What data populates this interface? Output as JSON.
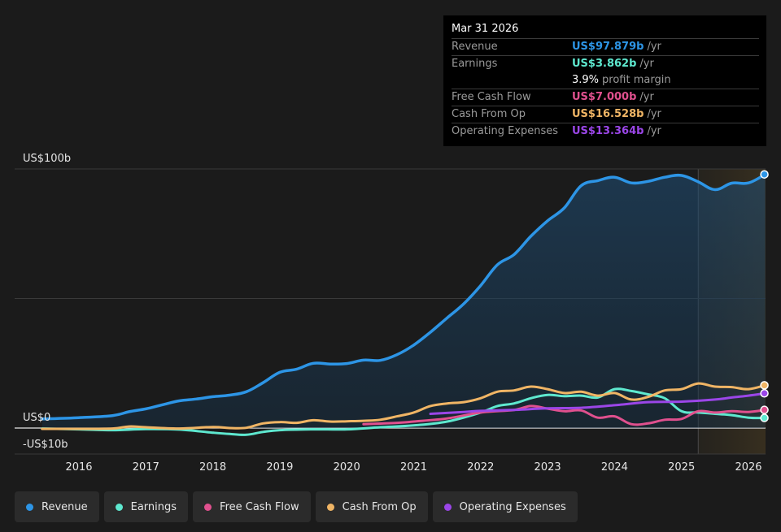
{
  "tooltip": {
    "date": "Mar 31 2026",
    "rows": [
      {
        "label": "Revenue",
        "value": "US$97.879b",
        "unit": "/yr",
        "color": "#2d95e6"
      },
      {
        "label": "Earnings",
        "value": "US$3.862b",
        "unit": "/yr",
        "color": "#5ee8cf"
      },
      {
        "label": "Free Cash Flow",
        "value": "US$7.000b",
        "unit": "/yr",
        "color": "#e0508e"
      },
      {
        "label": "Cash From Op",
        "value": "US$16.528b",
        "unit": "/yr",
        "color": "#f0b565"
      },
      {
        "label": "Operating Expenses",
        "value": "US$13.364b",
        "unit": "/yr",
        "color": "#9b46e8"
      }
    ],
    "margin_value": "3.9%",
    "margin_label": "profit margin"
  },
  "legend": [
    {
      "label": "Revenue",
      "color": "#2d95e6"
    },
    {
      "label": "Earnings",
      "color": "#5ee8cf"
    },
    {
      "label": "Free Cash Flow",
      "color": "#e0508e"
    },
    {
      "label": "Cash From Op",
      "color": "#f0b565"
    },
    {
      "label": "Operating Expenses",
      "color": "#9b46e8"
    }
  ],
  "chart_data": {
    "type": "line",
    "y_tick_labels": [
      {
        "value": 100,
        "label": "US$100b"
      },
      {
        "value": 0,
        "label": "US$0"
      },
      {
        "value": -10,
        "label": "-US$10b"
      }
    ],
    "ylim": [
      -10,
      100
    ],
    "x_unit": "year",
    "xlim": [
      2015.3,
      2026.25
    ],
    "x_ticks": [
      2016,
      2017,
      2018,
      2019,
      2020,
      2021,
      2022,
      2023,
      2024,
      2025,
      2026
    ],
    "forecast_start": 2025.25,
    "series": [
      {
        "name": "Revenue",
        "color": "#2d95e6",
        "area": true,
        "points": [
          [
            2015.45,
            3.5
          ],
          [
            2016.0,
            4.0
          ],
          [
            2016.5,
            4.8
          ],
          [
            2016.75,
            6.3
          ],
          [
            2017.0,
            7.4
          ],
          [
            2017.25,
            9.0
          ],
          [
            2017.5,
            10.5
          ],
          [
            2017.75,
            11.2
          ],
          [
            2018.0,
            12.1
          ],
          [
            2018.25,
            12.7
          ],
          [
            2018.5,
            14.0
          ],
          [
            2018.75,
            17.5
          ],
          [
            2019.0,
            21.5
          ],
          [
            2019.25,
            22.7
          ],
          [
            2019.5,
            25.0
          ],
          [
            2019.75,
            24.7
          ],
          [
            2020.0,
            24.9
          ],
          [
            2020.25,
            26.2
          ],
          [
            2020.5,
            26.1
          ],
          [
            2020.75,
            28.3
          ],
          [
            2021.0,
            32.0
          ],
          [
            2021.25,
            37.0
          ],
          [
            2021.5,
            42.5
          ],
          [
            2021.75,
            48.0
          ],
          [
            2022.0,
            55.0
          ],
          [
            2022.25,
            63.0
          ],
          [
            2022.5,
            67.0
          ],
          [
            2022.75,
            74.0
          ],
          [
            2023.0,
            80.0
          ],
          [
            2023.25,
            85.0
          ],
          [
            2023.5,
            93.5
          ],
          [
            2023.75,
            95.5
          ],
          [
            2024.0,
            96.8
          ],
          [
            2024.25,
            94.6
          ],
          [
            2024.5,
            95.2
          ],
          [
            2024.75,
            96.8
          ],
          [
            2025.0,
            97.5
          ],
          [
            2025.25,
            95.0
          ],
          [
            2025.5,
            92.0
          ],
          [
            2025.75,
            94.5
          ],
          [
            2026.0,
            94.6
          ],
          [
            2026.25,
            97.9
          ]
        ]
      },
      {
        "name": "Earnings",
        "color": "#5ee8cf",
        "area": false,
        "points": [
          [
            2015.45,
            -0.2
          ],
          [
            2016.0,
            -0.5
          ],
          [
            2016.5,
            -0.8
          ],
          [
            2017.0,
            -0.4
          ],
          [
            2017.5,
            -0.6
          ],
          [
            2018.0,
            -1.8
          ],
          [
            2018.25,
            -2.3
          ],
          [
            2018.5,
            -2.6
          ],
          [
            2018.75,
            -1.5
          ],
          [
            2019.0,
            -0.8
          ],
          [
            2019.5,
            -0.5
          ],
          [
            2020.0,
            -0.5
          ],
          [
            2020.5,
            0.3
          ],
          [
            2021.0,
            1.0
          ],
          [
            2021.5,
            2.5
          ],
          [
            2022.0,
            6.0
          ],
          [
            2022.25,
            8.5
          ],
          [
            2022.5,
            9.5
          ],
          [
            2022.75,
            11.5
          ],
          [
            2023.0,
            12.8
          ],
          [
            2023.25,
            12.3
          ],
          [
            2023.5,
            12.5
          ],
          [
            2023.75,
            11.8
          ],
          [
            2024.0,
            15.0
          ],
          [
            2024.25,
            14.3
          ],
          [
            2024.5,
            13.0
          ],
          [
            2024.75,
            11.5
          ],
          [
            2025.0,
            6.5
          ],
          [
            2025.25,
            6.0
          ],
          [
            2025.5,
            5.5
          ],
          [
            2025.75,
            5.0
          ],
          [
            2026.0,
            4.0
          ],
          [
            2026.25,
            3.9
          ]
        ]
      },
      {
        "name": "Free Cash Flow",
        "color": "#e0508e",
        "area": false,
        "points": [
          [
            2020.25,
            1.5
          ],
          [
            2020.75,
            2.0
          ],
          [
            2021.0,
            2.5
          ],
          [
            2021.5,
            3.7
          ],
          [
            2022.0,
            6.0
          ],
          [
            2022.5,
            7.0
          ],
          [
            2022.75,
            8.5
          ],
          [
            2023.0,
            7.5
          ],
          [
            2023.25,
            6.5
          ],
          [
            2023.5,
            6.8
          ],
          [
            2023.75,
            4.0
          ],
          [
            2024.0,
            4.5
          ],
          [
            2024.25,
            1.5
          ],
          [
            2024.5,
            1.8
          ],
          [
            2024.75,
            3.2
          ],
          [
            2025.0,
            3.5
          ],
          [
            2025.25,
            6.5
          ],
          [
            2025.5,
            6.0
          ],
          [
            2025.75,
            6.5
          ],
          [
            2026.0,
            6.2
          ],
          [
            2026.25,
            7.0
          ]
        ]
      },
      {
        "name": "Cash From Op",
        "color": "#f0b565",
        "area": false,
        "points": [
          [
            2015.45,
            -0.3
          ],
          [
            2016.0,
            -0.3
          ],
          [
            2016.5,
            -0.2
          ],
          [
            2016.75,
            0.6
          ],
          [
            2017.0,
            0.3
          ],
          [
            2017.5,
            -0.2
          ],
          [
            2018.0,
            0.4
          ],
          [
            2018.25,
            0.0
          ],
          [
            2018.5,
            0.1
          ],
          [
            2018.75,
            1.8
          ],
          [
            2019.0,
            2.3
          ],
          [
            2019.25,
            2.0
          ],
          [
            2019.5,
            3.0
          ],
          [
            2019.75,
            2.5
          ],
          [
            2020.0,
            2.6
          ],
          [
            2020.25,
            2.8
          ],
          [
            2020.5,
            3.2
          ],
          [
            2020.75,
            4.5
          ],
          [
            2021.0,
            6.0
          ],
          [
            2021.25,
            8.5
          ],
          [
            2021.5,
            9.5
          ],
          [
            2021.75,
            10.0
          ],
          [
            2022.0,
            11.5
          ],
          [
            2022.25,
            14.0
          ],
          [
            2022.5,
            14.5
          ],
          [
            2022.75,
            16.0
          ],
          [
            2023.0,
            15.0
          ],
          [
            2023.25,
            13.5
          ],
          [
            2023.5,
            14.0
          ],
          [
            2023.75,
            12.5
          ],
          [
            2024.0,
            13.5
          ],
          [
            2024.25,
            11.0
          ],
          [
            2024.5,
            12.0
          ],
          [
            2024.75,
            14.5
          ],
          [
            2025.0,
            15.0
          ],
          [
            2025.25,
            17.2
          ],
          [
            2025.5,
            16.0
          ],
          [
            2025.75,
            15.8
          ],
          [
            2026.0,
            15.0
          ],
          [
            2026.25,
            16.5
          ]
        ]
      },
      {
        "name": "Operating Expenses",
        "color": "#9b46e8",
        "area": false,
        "points": [
          [
            2021.25,
            5.5
          ],
          [
            2021.75,
            6.2
          ],
          [
            2022.0,
            6.6
          ],
          [
            2022.5,
            7.0
          ],
          [
            2023.0,
            7.6
          ],
          [
            2023.5,
            7.8
          ],
          [
            2024.0,
            8.8
          ],
          [
            2024.5,
            10.0
          ],
          [
            2025.0,
            10.2
          ],
          [
            2025.5,
            11.0
          ],
          [
            2025.75,
            11.8
          ],
          [
            2026.0,
            12.5
          ],
          [
            2026.25,
            13.4
          ]
        ]
      }
    ]
  }
}
